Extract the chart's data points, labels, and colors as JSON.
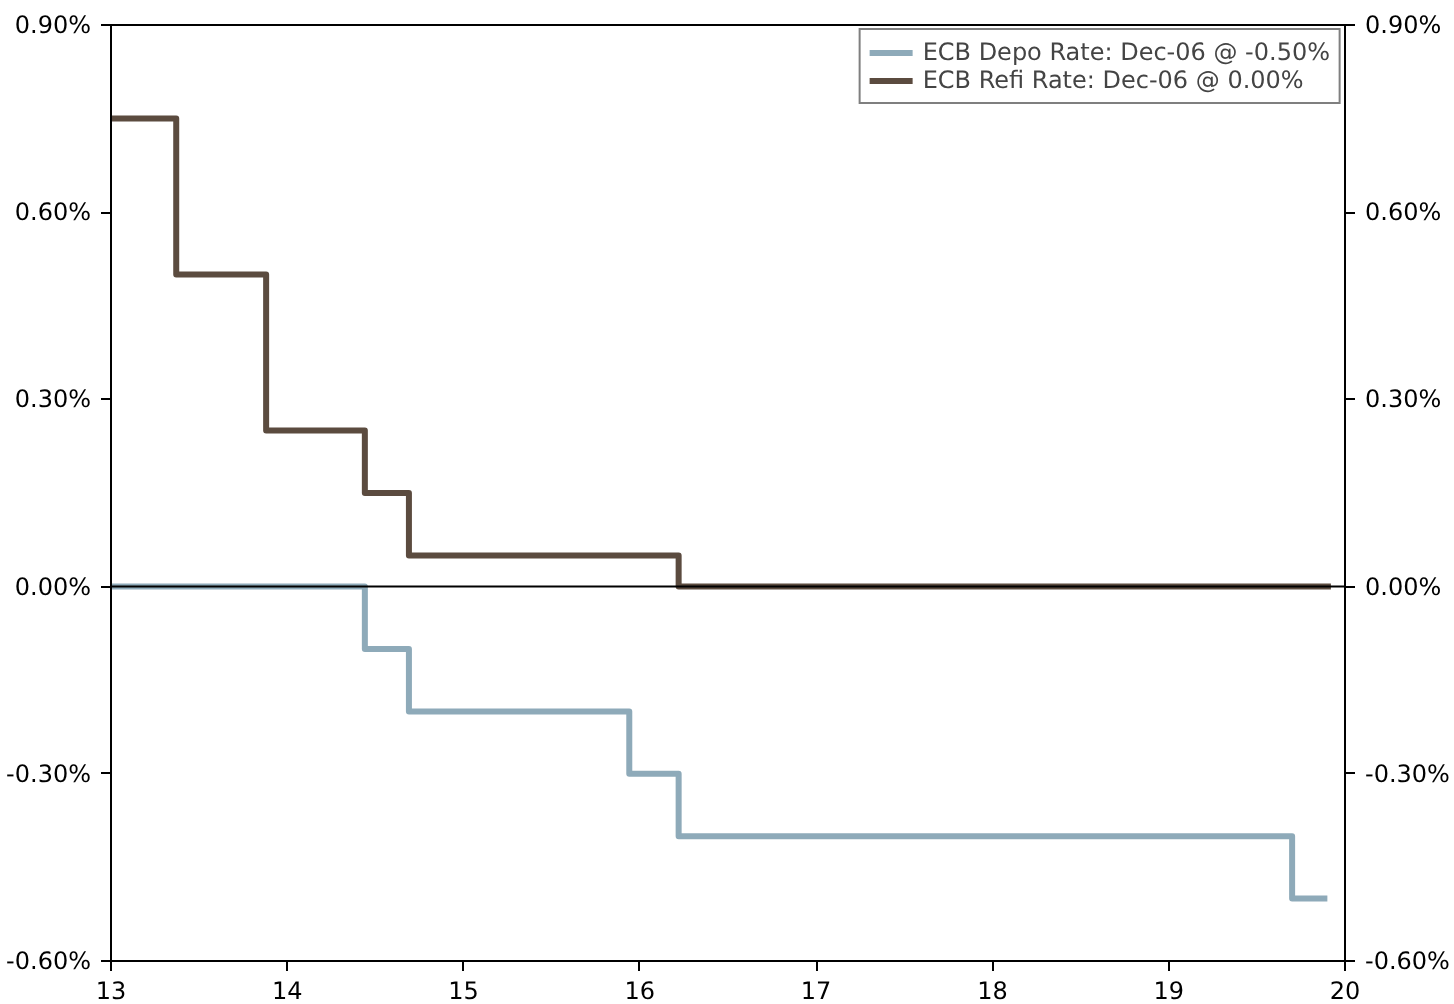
{
  "chart_data": {
    "type": "step",
    "series": [
      {
        "name": "ECB Depo Rate: Dec-06 @ -0.50%",
        "color": "#8eaab9",
        "x": [
          13.0,
          14.44,
          14.69,
          15.94,
          16.22,
          19.7,
          19.9
        ],
        "values": [
          0.0,
          -0.1,
          -0.2,
          -0.3,
          -0.4,
          -0.5,
          -0.5
        ]
      },
      {
        "name": "ECB Refi Rate: Dec-06 @ 0.00%",
        "color": "#5b4b3f",
        "x": [
          13.0,
          13.37,
          13.88,
          14.44,
          14.69,
          16.22,
          19.92
        ],
        "values": [
          0.75,
          0.5,
          0.25,
          0.15,
          0.05,
          0.0,
          0.0
        ]
      }
    ],
    "xlim": [
      13,
      20
    ],
    "xticks": [
      13,
      14,
      15,
      16,
      17,
      18,
      19,
      20
    ],
    "ylim": [
      -0.6,
      0.9
    ],
    "yticks": [
      {
        "value": -0.6,
        "label": "-0.60%"
      },
      {
        "value": -0.3,
        "label": "-0.30%"
      },
      {
        "value": 0,
        "label": "0.00%"
      },
      {
        "value": 0.3,
        "label": "0.30%"
      },
      {
        "value": 0.6,
        "label": "0.60%"
      },
      {
        "value": 0.9,
        "label": "0.90%"
      }
    ],
    "y2lim": [
      -0.6,
      0.9
    ],
    "y2ticks": [
      {
        "value": -0.6,
        "label": "-0.60%"
      },
      {
        "value": -0.3,
        "label": "-0.30%"
      },
      {
        "value": 0,
        "label": "0.00%"
      },
      {
        "value": 0.3,
        "label": "0.30%"
      },
      {
        "value": 0.6,
        "label": "0.60%"
      },
      {
        "value": 0.9,
        "label": "0.90%"
      }
    ],
    "ref_lines": [
      {
        "axis": "y",
        "value": 0,
        "color": "#000000"
      }
    ],
    "legend": "top right",
    "grid": false,
    "line_style": "solid"
  }
}
